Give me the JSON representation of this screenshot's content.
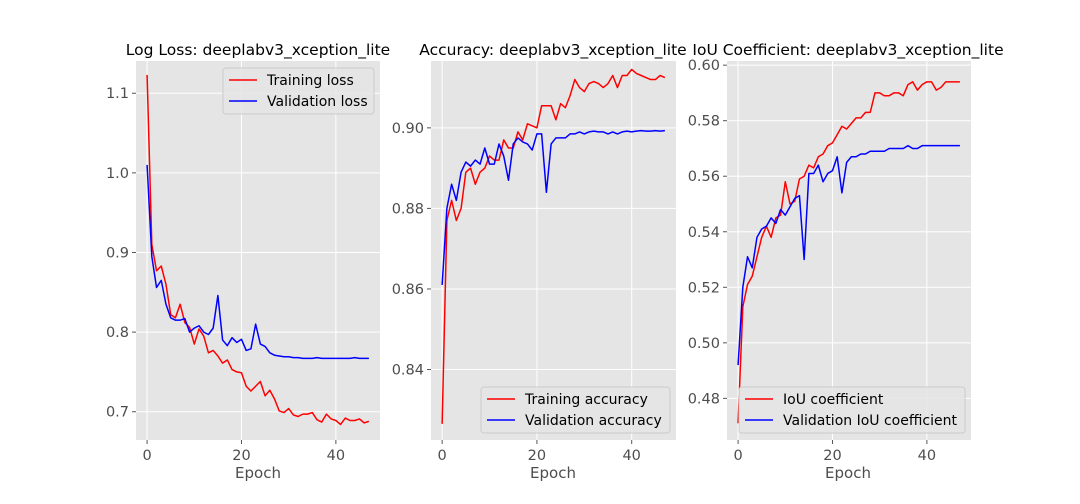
{
  "chart_data": [
    {
      "type": "line",
      "title": "Log Loss: deeplabv3_xception_lite",
      "xlabel": "Epoch",
      "ylabel": "",
      "xlim": [
        -2.35,
        49.35
      ],
      "ylim": [
        0.6645,
        1.1405
      ],
      "xticks": [
        0,
        20,
        40
      ],
      "yticks": [
        0.7,
        0.8,
        0.9,
        1.0,
        1.1
      ],
      "ytick_decimals": 1,
      "grid": true,
      "legend_position": "upper right",
      "series": [
        {
          "name": "Training loss",
          "color": "#ff0000",
          "x": [
            0,
            1,
            2,
            3,
            4,
            5,
            6,
            7,
            8,
            9,
            10,
            11,
            12,
            13,
            14,
            15,
            16,
            17,
            18,
            19,
            20,
            21,
            22,
            23,
            24,
            25,
            26,
            27,
            28,
            29,
            30,
            31,
            32,
            33,
            34,
            35,
            36,
            37,
            38,
            39,
            40,
            41,
            42,
            43,
            44,
            45,
            46,
            47
          ],
          "y": [
            1.123,
            0.91,
            0.877,
            0.883,
            0.86,
            0.822,
            0.818,
            0.835,
            0.812,
            0.806,
            0.785,
            0.804,
            0.795,
            0.774,
            0.777,
            0.77,
            0.761,
            0.765,
            0.753,
            0.75,
            0.749,
            0.732,
            0.726,
            0.732,
            0.738,
            0.72,
            0.727,
            0.716,
            0.701,
            0.699,
            0.704,
            0.696,
            0.694,
            0.697,
            0.697,
            0.699,
            0.69,
            0.687,
            0.697,
            0.691,
            0.689,
            0.684,
            0.692,
            0.689,
            0.689,
            0.691,
            0.686,
            0.688
          ]
        },
        {
          "name": "Validation loss",
          "color": "#0000ff",
          "x": [
            0,
            1,
            2,
            3,
            4,
            5,
            6,
            7,
            8,
            9,
            10,
            11,
            12,
            13,
            14,
            15,
            16,
            17,
            18,
            19,
            20,
            21,
            22,
            23,
            24,
            25,
            26,
            27,
            28,
            29,
            30,
            31,
            32,
            33,
            34,
            35,
            36,
            37,
            38,
            39,
            40,
            41,
            42,
            43,
            44,
            45,
            46,
            47
          ],
          "y": [
            1.01,
            0.895,
            0.856,
            0.865,
            0.835,
            0.818,
            0.815,
            0.815,
            0.817,
            0.8,
            0.805,
            0.808,
            0.8,
            0.797,
            0.805,
            0.846,
            0.79,
            0.783,
            0.793,
            0.787,
            0.791,
            0.777,
            0.779,
            0.81,
            0.785,
            0.782,
            0.774,
            0.771,
            0.77,
            0.769,
            0.769,
            0.768,
            0.768,
            0.767,
            0.767,
            0.767,
            0.768,
            0.767,
            0.767,
            0.767,
            0.767,
            0.767,
            0.767,
            0.767,
            0.768,
            0.767,
            0.767,
            0.767
          ]
        }
      ]
    },
    {
      "type": "line",
      "title": "Accuracy: deeplabv3_xception_lite",
      "xlabel": "Epoch",
      "ylabel": "",
      "xlim": [
        -2.35,
        49.35
      ],
      "ylim": [
        0.8225,
        0.9166
      ],
      "xticks": [
        0,
        20,
        40
      ],
      "yticks": [
        0.84,
        0.86,
        0.88,
        0.9
      ],
      "ytick_decimals": 2,
      "grid": true,
      "legend_position": "lower right",
      "series": [
        {
          "name": "Training accuracy",
          "color": "#ff0000",
          "x": [
            0,
            1,
            2,
            3,
            4,
            5,
            6,
            7,
            8,
            9,
            10,
            11,
            12,
            13,
            14,
            15,
            16,
            17,
            18,
            19,
            20,
            21,
            22,
            23,
            24,
            25,
            26,
            27,
            28,
            29,
            30,
            31,
            32,
            33,
            34,
            35,
            36,
            37,
            38,
            39,
            40,
            41,
            42,
            43,
            44,
            45,
            46,
            47
          ],
          "y": [
            0.8265,
            0.877,
            0.882,
            0.877,
            0.88,
            0.889,
            0.89,
            0.886,
            0.889,
            0.89,
            0.893,
            0.892,
            0.892,
            0.897,
            0.895,
            0.895,
            0.899,
            0.897,
            0.901,
            0.9005,
            0.9,
            0.9055,
            0.9055,
            0.9055,
            0.902,
            0.906,
            0.905,
            0.908,
            0.912,
            0.91,
            0.909,
            0.911,
            0.9115,
            0.911,
            0.91,
            0.911,
            0.913,
            0.91,
            0.913,
            0.913,
            0.9145,
            0.9135,
            0.913,
            0.9125,
            0.912,
            0.912,
            0.913,
            0.9125
          ]
        },
        {
          "name": "Validation accuracy",
          "color": "#0000ff",
          "x": [
            0,
            1,
            2,
            3,
            4,
            5,
            6,
            7,
            8,
            9,
            10,
            11,
            12,
            13,
            14,
            15,
            16,
            17,
            18,
            19,
            20,
            21,
            22,
            23,
            24,
            25,
            26,
            27,
            28,
            29,
            30,
            31,
            32,
            33,
            34,
            35,
            36,
            37,
            38,
            39,
            40,
            41,
            42,
            43,
            44,
            45,
            46,
            47
          ],
          "y": [
            0.861,
            0.88,
            0.886,
            0.882,
            0.889,
            0.8915,
            0.8905,
            0.892,
            0.891,
            0.895,
            0.891,
            0.891,
            0.896,
            0.893,
            0.887,
            0.896,
            0.8975,
            0.8965,
            0.896,
            0.8945,
            0.8985,
            0.8985,
            0.884,
            0.896,
            0.8975,
            0.8975,
            0.8975,
            0.8985,
            0.8985,
            0.899,
            0.8985,
            0.899,
            0.8992,
            0.899,
            0.899,
            0.8985,
            0.899,
            0.8985,
            0.899,
            0.8992,
            0.899,
            0.8992,
            0.8993,
            0.8992,
            0.8992,
            0.8993,
            0.8992,
            0.8993
          ]
        }
      ]
    },
    {
      "type": "line",
      "title": "IoU Coefficient: deeplabv3_xception_lite",
      "xlabel": "Epoch",
      "ylabel": "",
      "xlim": [
        -2.35,
        49.35
      ],
      "ylim": [
        0.465,
        0.6015
      ],
      "xticks": [
        0,
        20,
        40
      ],
      "yticks": [
        0.48,
        0.5,
        0.52,
        0.54,
        0.56,
        0.58,
        0.6
      ],
      "ytick_decimals": 2,
      "grid": true,
      "legend_position": "lower right",
      "series": [
        {
          "name": "IoU coefficient",
          "color": "#ff0000",
          "x": [
            0,
            1,
            2,
            3,
            4,
            5,
            6,
            7,
            8,
            9,
            10,
            11,
            12,
            13,
            14,
            15,
            16,
            17,
            18,
            19,
            20,
            21,
            22,
            23,
            24,
            25,
            26,
            27,
            28,
            29,
            30,
            31,
            32,
            33,
            34,
            35,
            36,
            37,
            38,
            39,
            40,
            41,
            42,
            43,
            44,
            45,
            46,
            47
          ],
          "y": [
            0.471,
            0.513,
            0.521,
            0.524,
            0.531,
            0.538,
            0.542,
            0.538,
            0.545,
            0.546,
            0.558,
            0.55,
            0.551,
            0.559,
            0.56,
            0.564,
            0.563,
            0.567,
            0.568,
            0.571,
            0.572,
            0.575,
            0.578,
            0.577,
            0.579,
            0.581,
            0.581,
            0.583,
            0.583,
            0.59,
            0.59,
            0.589,
            0.589,
            0.59,
            0.59,
            0.589,
            0.593,
            0.594,
            0.591,
            0.593,
            0.594,
            0.594,
            0.591,
            0.592,
            0.594,
            0.594,
            0.594,
            0.594
          ]
        },
        {
          "name": "Validation IoU coefficient",
          "color": "#0000ff",
          "x": [
            0,
            1,
            2,
            3,
            4,
            5,
            6,
            7,
            8,
            9,
            10,
            11,
            12,
            13,
            14,
            15,
            16,
            17,
            18,
            19,
            20,
            21,
            22,
            23,
            24,
            25,
            26,
            27,
            28,
            29,
            30,
            31,
            32,
            33,
            34,
            35,
            36,
            37,
            38,
            39,
            40,
            41,
            42,
            43,
            44,
            45,
            46,
            47
          ],
          "y": [
            0.492,
            0.52,
            0.531,
            0.527,
            0.538,
            0.541,
            0.542,
            0.545,
            0.543,
            0.548,
            0.546,
            0.549,
            0.552,
            0.553,
            0.53,
            0.561,
            0.561,
            0.564,
            0.558,
            0.561,
            0.562,
            0.567,
            0.554,
            0.565,
            0.567,
            0.567,
            0.568,
            0.568,
            0.569,
            0.569,
            0.569,
            0.569,
            0.57,
            0.57,
            0.57,
            0.57,
            0.571,
            0.57,
            0.57,
            0.571,
            0.571,
            0.571,
            0.571,
            0.571,
            0.571,
            0.571,
            0.571,
            0.571
          ]
        }
      ]
    }
  ]
}
